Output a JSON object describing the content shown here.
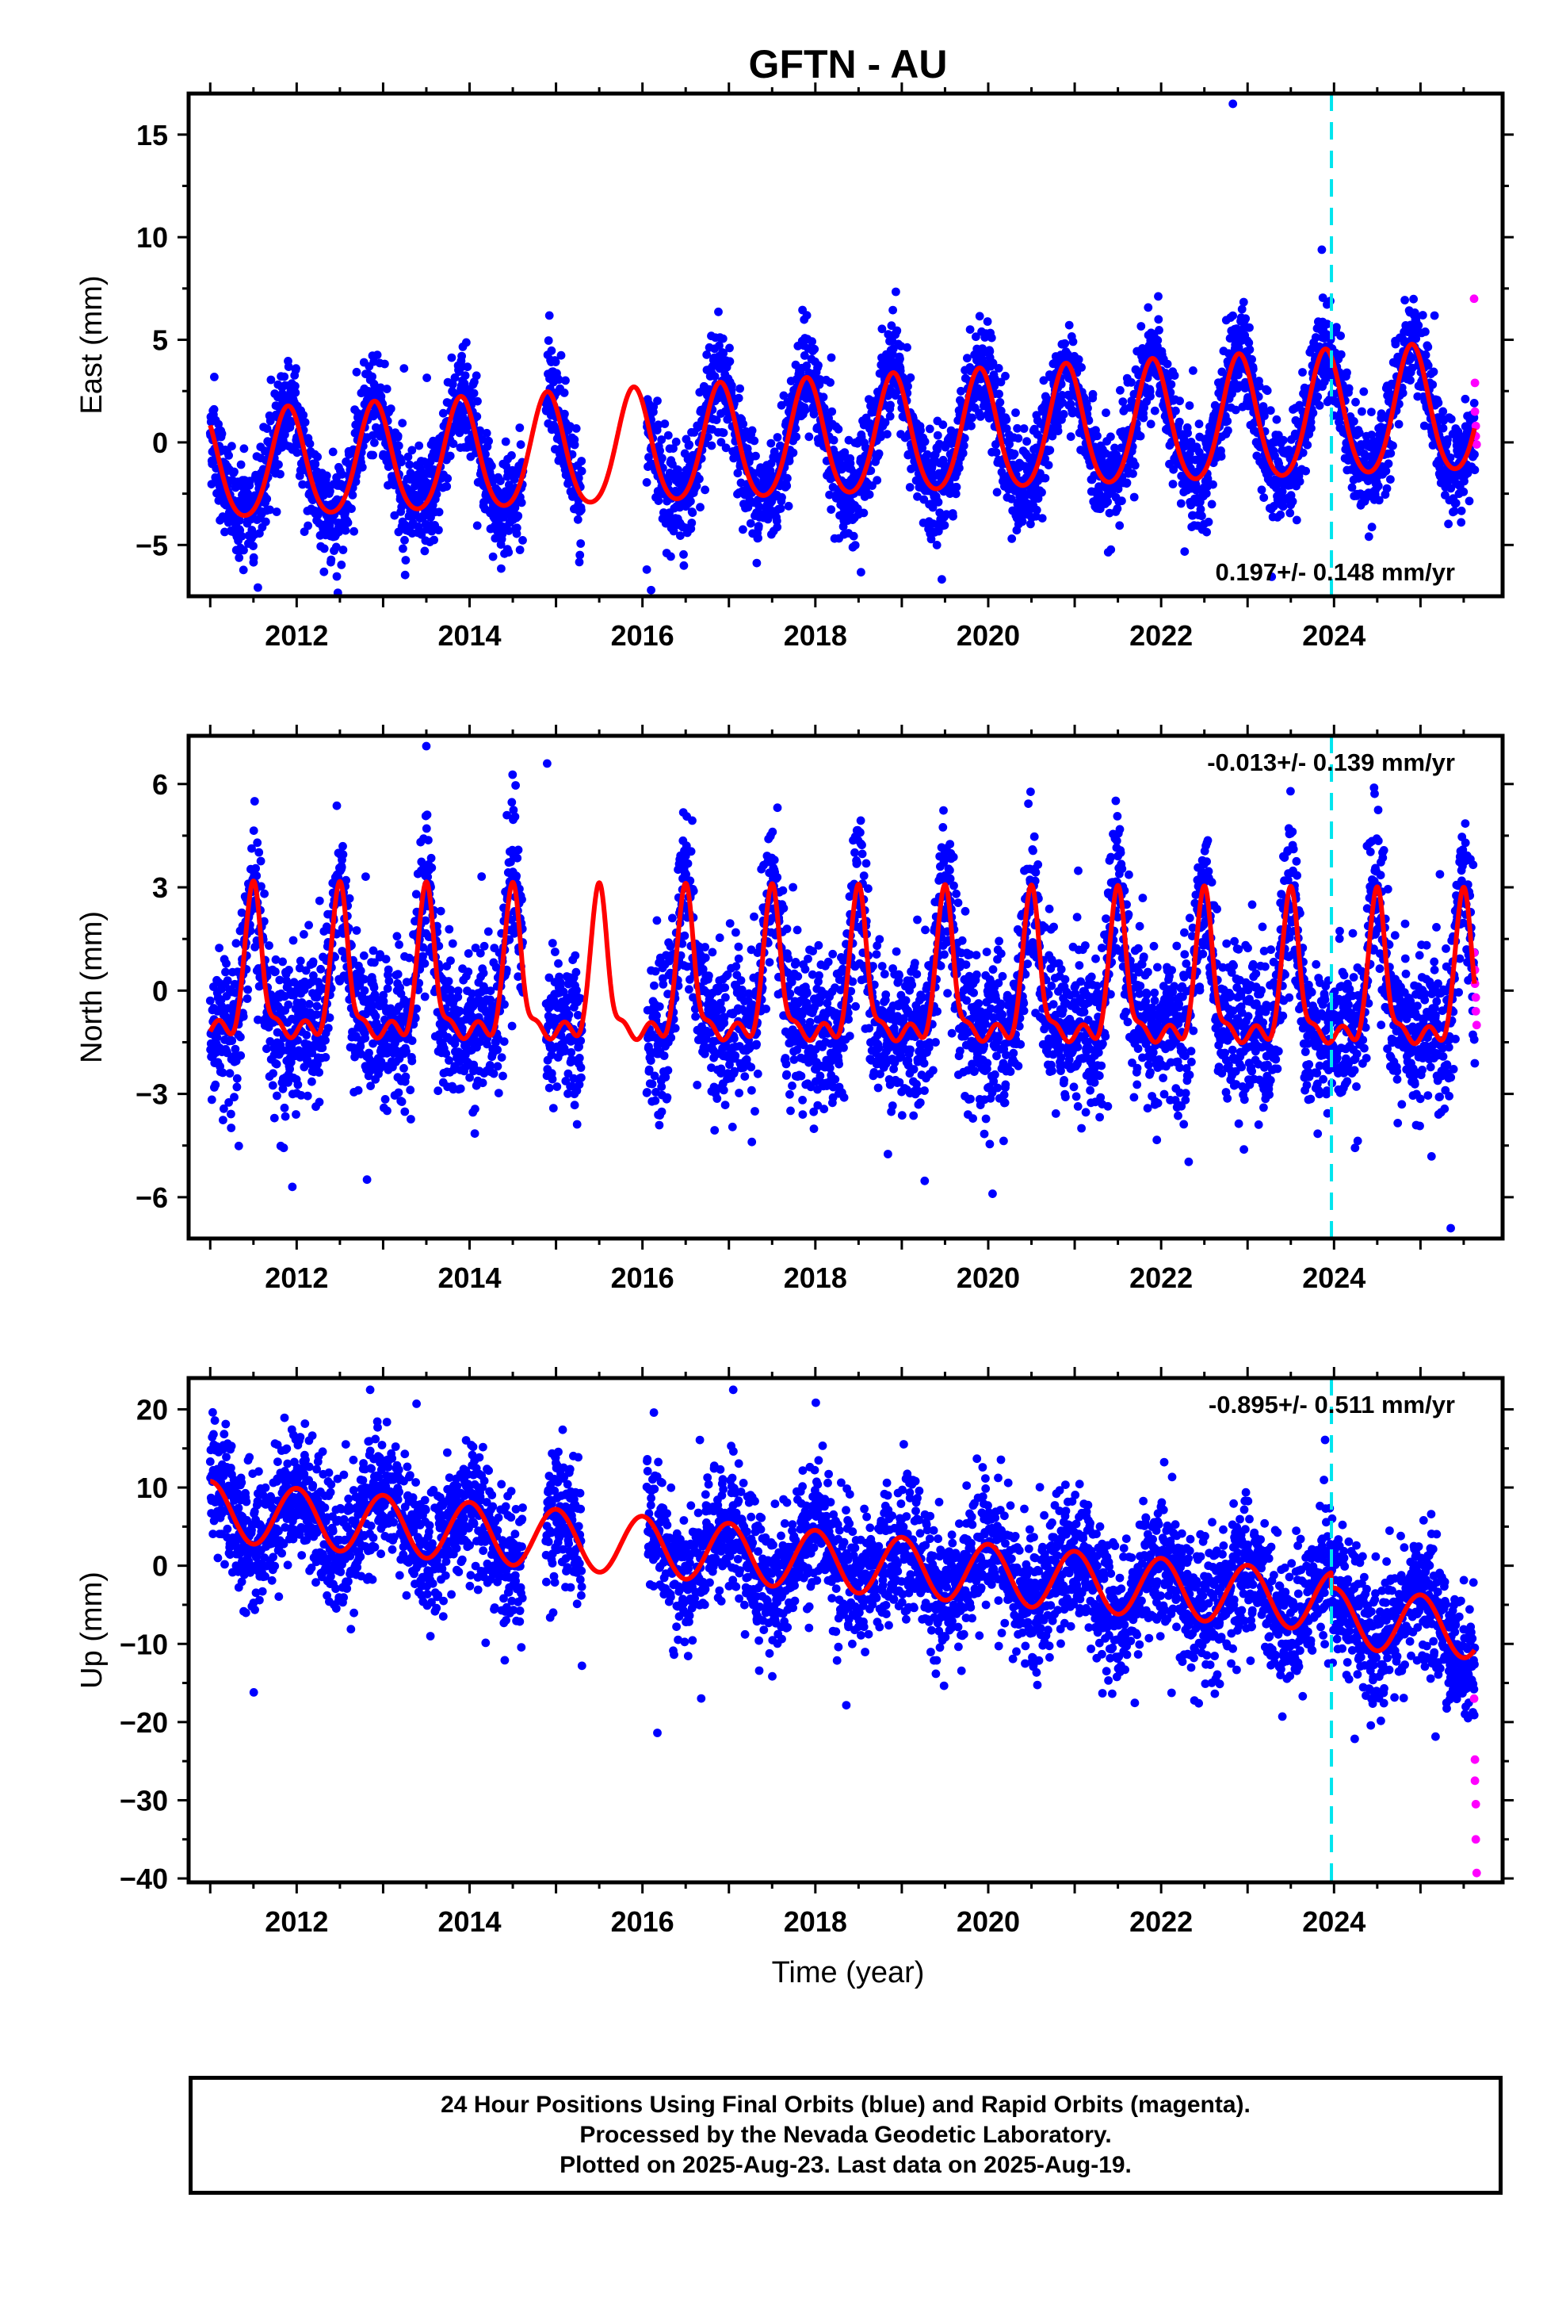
{
  "title": "GFTN - AU",
  "xlabel": "Time (year)",
  "footer": {
    "line1": "24 Hour Positions Using Final Orbits (blue) and Rapid Orbits (magenta).",
    "line2": "Processed by the Nevada Geodetic Laboratory.",
    "line3": "Plotted on 2025-Aug-23. Last data on 2025-Aug-19."
  },
  "colors": {
    "final_orbits": "#0000ff",
    "rapid_orbits": "#ff00ff",
    "model_fit": "#ff0000",
    "marker_line": "#00e5ee"
  },
  "chart_data": [
    {
      "type": "scatter",
      "name": "east",
      "ylabel": "East (mm)",
      "xlim": [
        2010.75,
        2025.95
      ],
      "ylim": [
        -7.5,
        17
      ],
      "x_ticks": [
        2012,
        2014,
        2016,
        2018,
        2020,
        2022,
        2024
      ],
      "y_ticks": [
        -5,
        0,
        5,
        10,
        15
      ],
      "vertical_marker_x": 2023.97,
      "rate_label": "0.197+/- 0.148 mm/yr",
      "rate_label_position": "bottom-right",
      "grid": false,
      "model": {
        "type": "line",
        "offset": 0.0,
        "trend": 0.197,
        "annual_amplitude_start": 2.6,
        "annual_amplitude_end": 3.1,
        "annual_peak": 2011.9,
        "semiannual_amplitude": 0.35,
        "semiannual_phase": 0.4
      },
      "observations": {
        "start": 2011.0,
        "end": 2025.63,
        "gaps": [
          [
            2014.62,
            2014.88
          ],
          [
            2015.3,
            2016.05
          ]
        ],
        "scatter_mm": 1.2,
        "outliers": [
          {
            "x": 2022.83,
            "y": 16.5
          },
          {
            "x": 2016.1,
            "y": -7.2
          },
          {
            "x": 2016.05,
            "y": -6.2
          }
        ]
      },
      "rapid_orbits": [
        {
          "x": 2025.62,
          "y": 7.0
        },
        {
          "x": 2025.63,
          "y": 2.9
        },
        {
          "x": 2025.63,
          "y": 1.5
        },
        {
          "x": 2025.64,
          "y": 0.8
        },
        {
          "x": 2025.64,
          "y": 0.3
        },
        {
          "x": 2025.65,
          "y": -0.1
        }
      ]
    },
    {
      "type": "scatter",
      "name": "north",
      "ylabel": "North (mm)",
      "xlim": [
        2010.75,
        2025.95
      ],
      "ylim": [
        -7.2,
        7.4
      ],
      "x_ticks": [
        2012,
        2014,
        2016,
        2018,
        2020,
        2022,
        2024
      ],
      "y_ticks": [
        -6,
        -3,
        0,
        3,
        6
      ],
      "vertical_marker_x": 2023.97,
      "rate_label": "-0.013+/- 0.139 mm/yr",
      "rate_label_position": "top-right",
      "grid": false,
      "model": {
        "type": "line",
        "offset": 0.0,
        "trend": -0.013,
        "pulse_peak": 3.1,
        "pulse_center": 0.5,
        "pulse_width": 0.09,
        "base_level": -1.2
      },
      "observations": {
        "start": 2011.0,
        "end": 2025.63,
        "gaps": [
          [
            2014.62,
            2014.88
          ],
          [
            2015.3,
            2016.05
          ]
        ],
        "scatter_mm": 1.1,
        "outliers": [
          {
            "x": 2013.5,
            "y": 7.1
          },
          {
            "x": 2020.05,
            "y": -5.9
          },
          {
            "x": 2025.35,
            "y": -6.9
          },
          {
            "x": 2011.95,
            "y": -5.7
          }
        ]
      },
      "rapid_orbits": [
        {
          "x": 2025.62,
          "y": 1.1
        },
        {
          "x": 2025.63,
          "y": 0.6
        },
        {
          "x": 2025.63,
          "y": 0.2
        },
        {
          "x": 2025.64,
          "y": -0.2
        },
        {
          "x": 2025.64,
          "y": -0.6
        },
        {
          "x": 2025.65,
          "y": -1.0
        }
      ]
    },
    {
      "type": "scatter",
      "name": "up",
      "ylabel": "Up (mm)",
      "xlim": [
        2010.75,
        2025.95
      ],
      "ylim": [
        -40.5,
        24
      ],
      "x_ticks": [
        2012,
        2014,
        2016,
        2018,
        2020,
        2022,
        2024
      ],
      "y_ticks": [
        -40,
        -30,
        -20,
        -10,
        0,
        10,
        20
      ],
      "vertical_marker_x": 2023.97,
      "rate_label": "-0.895+/- 0.511 mm/yr",
      "rate_label_position": "top-right",
      "grid": false,
      "model": {
        "type": "line",
        "offset": 0.0,
        "trend": -0.895,
        "start_value": 7.0,
        "annual_amplitude": 3.8,
        "annual_peak": 2012.0,
        "offset_step_at": 2023.97,
        "offset_step": -2.0
      },
      "observations": {
        "start": 2011.0,
        "end": 2025.63,
        "gaps": [
          [
            2014.62,
            2014.88
          ],
          [
            2015.3,
            2016.05
          ]
        ],
        "scatter_mm": 4.2,
        "outliers": [
          {
            "x": 2012.85,
            "y": 22.5
          },
          {
            "x": 2017.05,
            "y": 22.5
          },
          {
            "x": 2015.3,
            "y": -12.8
          },
          {
            "x": 2025.55,
            "y": -19.5
          }
        ]
      },
      "rapid_orbits": [
        {
          "x": 2025.62,
          "y": -17.0
        },
        {
          "x": 2025.63,
          "y": -24.8
        },
        {
          "x": 2025.63,
          "y": -27.5
        },
        {
          "x": 2025.64,
          "y": -30.5
        },
        {
          "x": 2025.64,
          "y": -35.0
        },
        {
          "x": 2025.65,
          "y": -39.3
        }
      ]
    }
  ]
}
